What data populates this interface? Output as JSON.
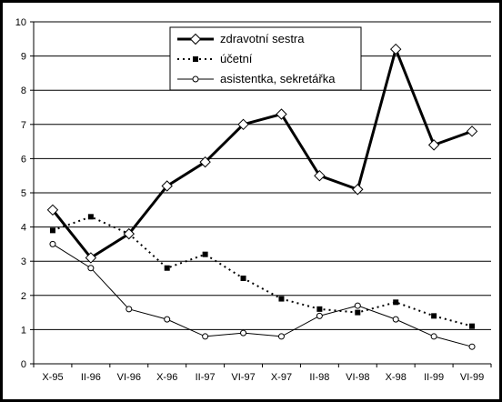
{
  "chart_data": {
    "type": "line",
    "title": "",
    "xlabel": "",
    "ylabel": "",
    "categories": [
      "X-95",
      "II-96",
      "VI-96",
      "X-96",
      "II-97",
      "VI-97",
      "X-97",
      "II-98",
      "VI-98",
      "X-98",
      "II-99",
      "VI-99"
    ],
    "ylim": [
      0,
      10
    ],
    "yticks": [
      "0",
      "1",
      "2",
      "3",
      "4",
      "5",
      "6",
      "7",
      "8",
      "9",
      "10"
    ],
    "grid": "horizontal",
    "legend_position": "top-center",
    "series": [
      {
        "name": "zdravotní sestra",
        "values": [
          4.5,
          3.1,
          3.8,
          5.2,
          5.9,
          7.0,
          7.3,
          5.5,
          5.1,
          9.2,
          6.4,
          6.8
        ],
        "style": "thick-solid",
        "marker": "diamond-open",
        "color": "#000000"
      },
      {
        "name": "účetní",
        "values": [
          3.9,
          4.3,
          3.8,
          2.8,
          3.2,
          2.5,
          1.9,
          1.6,
          1.5,
          1.8,
          1.4,
          1.1
        ],
        "style": "dotted",
        "marker": "square-filled",
        "color": "#000000"
      },
      {
        "name": "asistentka, sekretářka",
        "values": [
          3.5,
          2.8,
          1.6,
          1.3,
          0.8,
          0.9,
          0.8,
          1.4,
          1.7,
          1.3,
          0.8,
          0.5
        ],
        "style": "thin-solid",
        "marker": "circle-open",
        "color": "#000000"
      }
    ]
  },
  "colors": {
    "frame": "#000000",
    "plot_background": "#ffffff",
    "gridline": "#000000"
  }
}
